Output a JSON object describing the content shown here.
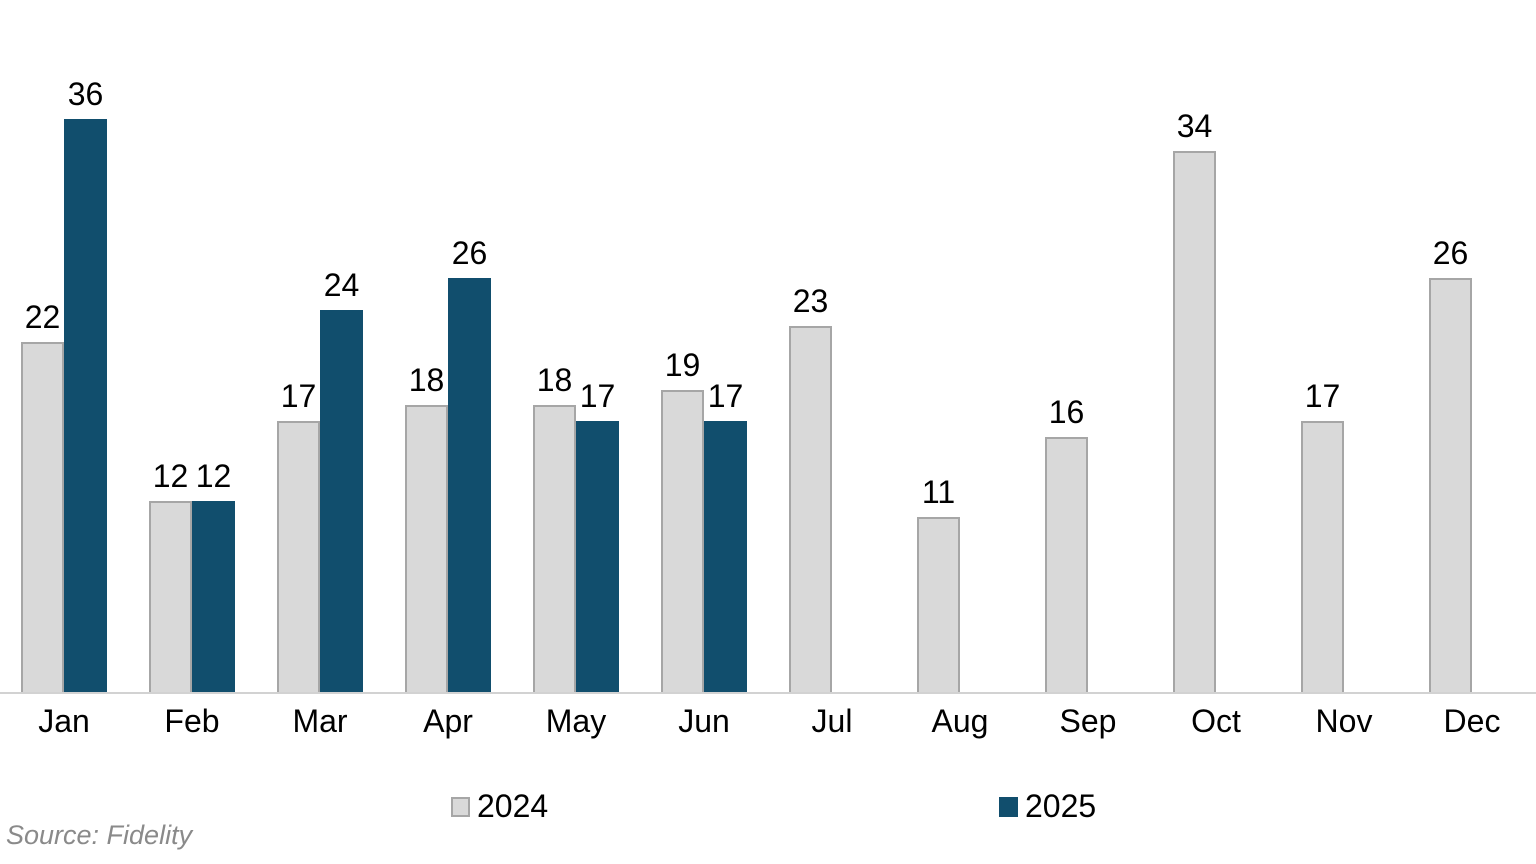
{
  "chart_data": {
    "type": "bar",
    "categories": [
      "Jan",
      "Feb",
      "Mar",
      "Apr",
      "May",
      "Jun",
      "Jul",
      "Aug",
      "Sep",
      "Oct",
      "Nov",
      "Dec"
    ],
    "series": [
      {
        "name": "2024",
        "color": "#d9d9d9",
        "border_color": "#a6a6a6",
        "values": [
          22,
          12,
          17,
          18,
          18,
          19,
          23,
          11,
          16,
          34,
          17,
          26
        ]
      },
      {
        "name": "2025",
        "color": "#114e6d",
        "border_color": null,
        "values": [
          36,
          12,
          24,
          26,
          17,
          17,
          null,
          null,
          null,
          null,
          null,
          null
        ]
      }
    ],
    "title": "",
    "xlabel": "",
    "ylabel": "",
    "ylim": [
      0,
      36
    ],
    "grid": false,
    "data_labels": true,
    "legend_position": "bottom",
    "axis_line_color": "#d2d2d2"
  },
  "legend": {
    "items": [
      {
        "label": "2024"
      },
      {
        "label": "2025"
      }
    ]
  },
  "source_note": "Source: Fidelity"
}
